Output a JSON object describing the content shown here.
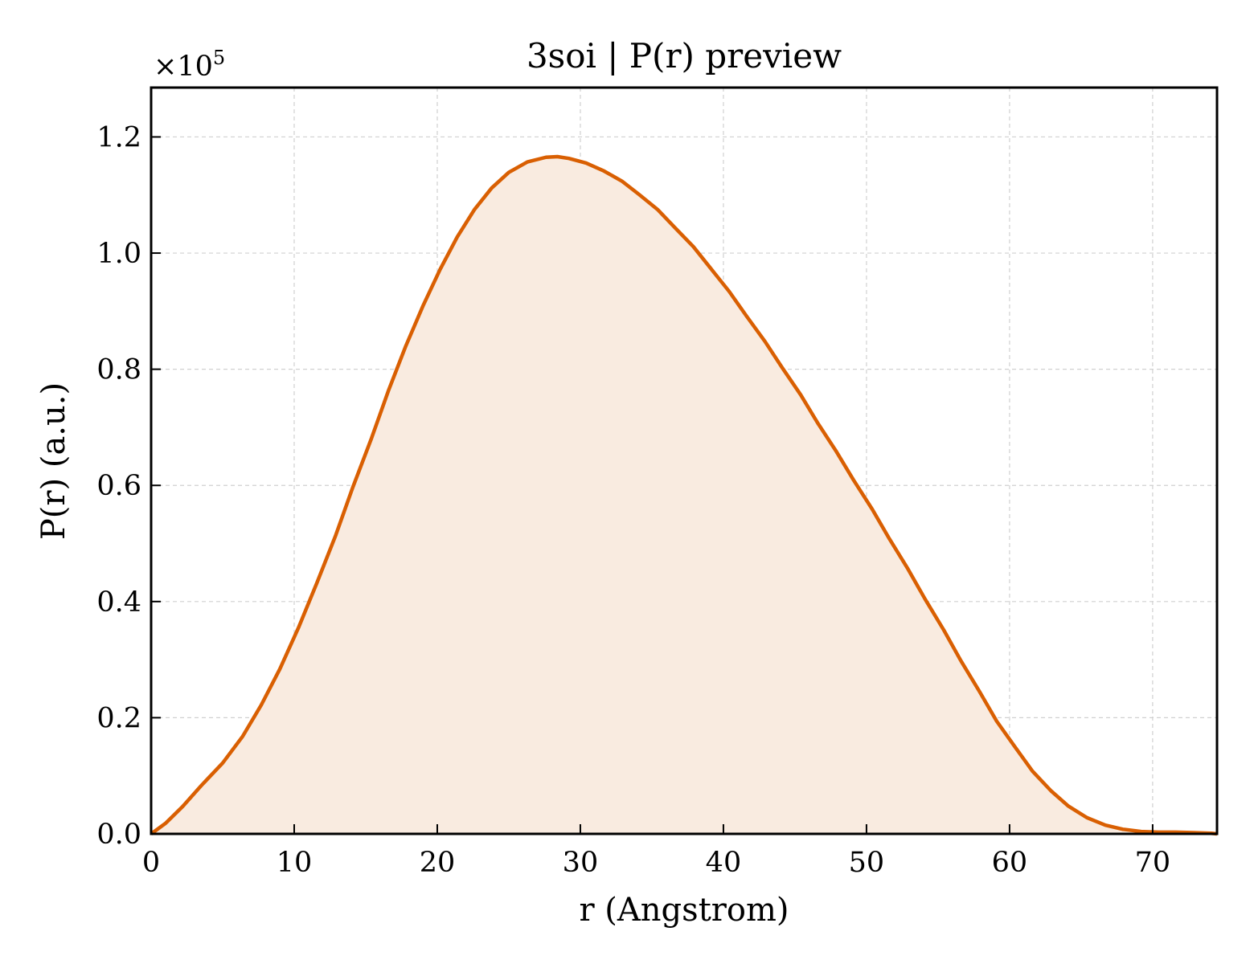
{
  "chart_data": {
    "type": "area",
    "title": "3soi | P(r) preview",
    "xlabel": "r (Angstrom)",
    "ylabel": "P(r) (a.u.)",
    "y_multiplier": {
      "base": "×10",
      "exponent": "5"
    },
    "xlim": [
      0,
      74.5
    ],
    "ylim": [
      0,
      1.285
    ],
    "grid": true,
    "line_color": "#d95f02",
    "fill_color": "#f9ebe0",
    "x_ticks": [
      0,
      10,
      20,
      30,
      40,
      50,
      60,
      70
    ],
    "x_tick_labels": [
      "0",
      "10",
      "20",
      "30",
      "40",
      "50",
      "60",
      "70"
    ],
    "y_ticks": [
      0.0,
      0.2,
      0.4,
      0.6,
      0.8,
      1.0,
      1.2
    ],
    "y_tick_labels": [
      "0.0",
      "0.2",
      "0.4",
      "0.6",
      "0.8",
      "1.0",
      "1.2"
    ],
    "series": [
      {
        "x": [
          0,
          1,
          2.2,
          3.5,
          5,
          6.4,
          7.7,
          9,
          10.3,
          11.6,
          12.9,
          14.1,
          15.4,
          16.6,
          17.8,
          19,
          20.2,
          21.4,
          22.6,
          23.8,
          25,
          26.3,
          27.6,
          28.4,
          29.2,
          30.4,
          31.6,
          32.9,
          34.1,
          35.4,
          36.6,
          37.9,
          39.1,
          40.4,
          41.6,
          42.9,
          44.1,
          45.4,
          46.6,
          47.9,
          49.1,
          50.4,
          51.6,
          52.9,
          54.1,
          55.4,
          56.6,
          57.9,
          59.1,
          60.4,
          61.6,
          62.9,
          64.1,
          65.4,
          66.7,
          67.9,
          69.2,
          70.4,
          71.6,
          72.9,
          74.1,
          74.5
        ],
        "y": [
          0.0,
          0.018,
          0.047,
          0.083,
          0.122,
          0.168,
          0.222,
          0.284,
          0.355,
          0.433,
          0.514,
          0.597,
          0.681,
          0.764,
          0.84,
          0.909,
          0.972,
          1.028,
          1.075,
          1.112,
          1.139,
          1.157,
          1.165,
          1.166,
          1.163,
          1.155,
          1.142,
          1.124,
          1.101,
          1.075,
          1.044,
          1.011,
          0.974,
          0.934,
          0.892,
          0.848,
          0.803,
          0.756,
          0.707,
          0.658,
          0.609,
          0.559,
          0.508,
          0.456,
          0.404,
          0.351,
          0.298,
          0.245,
          0.194,
          0.149,
          0.108,
          0.074,
          0.048,
          0.028,
          0.015,
          0.008,
          0.004,
          0.003,
          0.003,
          0.002,
          0.001,
          0.0
        ]
      }
    ]
  }
}
